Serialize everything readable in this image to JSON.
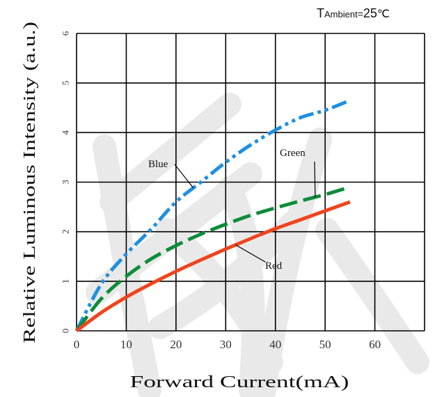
{
  "chart_data": {
    "type": "line",
    "condition": {
      "prefix": "T",
      "subscript": "Ambient",
      "equals": "=",
      "value": "25",
      "unit": "℃"
    },
    "xlabel": "Forward Current(mA)",
    "ylabel": "Relative Luminous Intensity (a.u.)",
    "xlim": [
      0,
      70
    ],
    "ylim": [
      0,
      6
    ],
    "x_ticks": [
      "0",
      "10",
      "20",
      "30",
      "40",
      "50",
      "60"
    ],
    "y_ticks": [
      "0",
      "1",
      "2",
      "3",
      "4",
      "5",
      "6"
    ],
    "grid": true,
    "series": [
      {
        "name": "Blue",
        "color": "#1e90e0",
        "dash": "dash-dot-dot",
        "x": [
          0,
          5,
          10,
          15,
          20,
          25,
          30,
          35,
          40,
          45,
          50,
          55
        ],
        "y": [
          0,
          0.95,
          1.55,
          2.05,
          2.6,
          3.0,
          3.4,
          3.75,
          4.05,
          4.3,
          4.45,
          4.65
        ]
      },
      {
        "name": "Green",
        "color": "#0e8c3a",
        "dash": "long-dash",
        "x": [
          0,
          5,
          10,
          15,
          20,
          25,
          30,
          35,
          40,
          45,
          50,
          55
        ],
        "y": [
          0,
          0.65,
          1.1,
          1.45,
          1.72,
          1.95,
          2.15,
          2.33,
          2.48,
          2.62,
          2.75,
          2.9
        ]
      },
      {
        "name": "Red",
        "color": "#f0441c",
        "dash": "solid",
        "x": [
          0,
          5,
          10,
          15,
          20,
          25,
          30,
          35,
          40,
          45,
          50,
          55
        ],
        "y": [
          0,
          0.37,
          0.68,
          0.95,
          1.2,
          1.43,
          1.65,
          1.86,
          2.06,
          2.24,
          2.42,
          2.6
        ]
      }
    ],
    "annotations": [
      {
        "text": "Blue",
        "series": "Blue"
      },
      {
        "text": "Green",
        "series": "Green"
      },
      {
        "text": "Red",
        "series": "Red"
      }
    ]
  }
}
